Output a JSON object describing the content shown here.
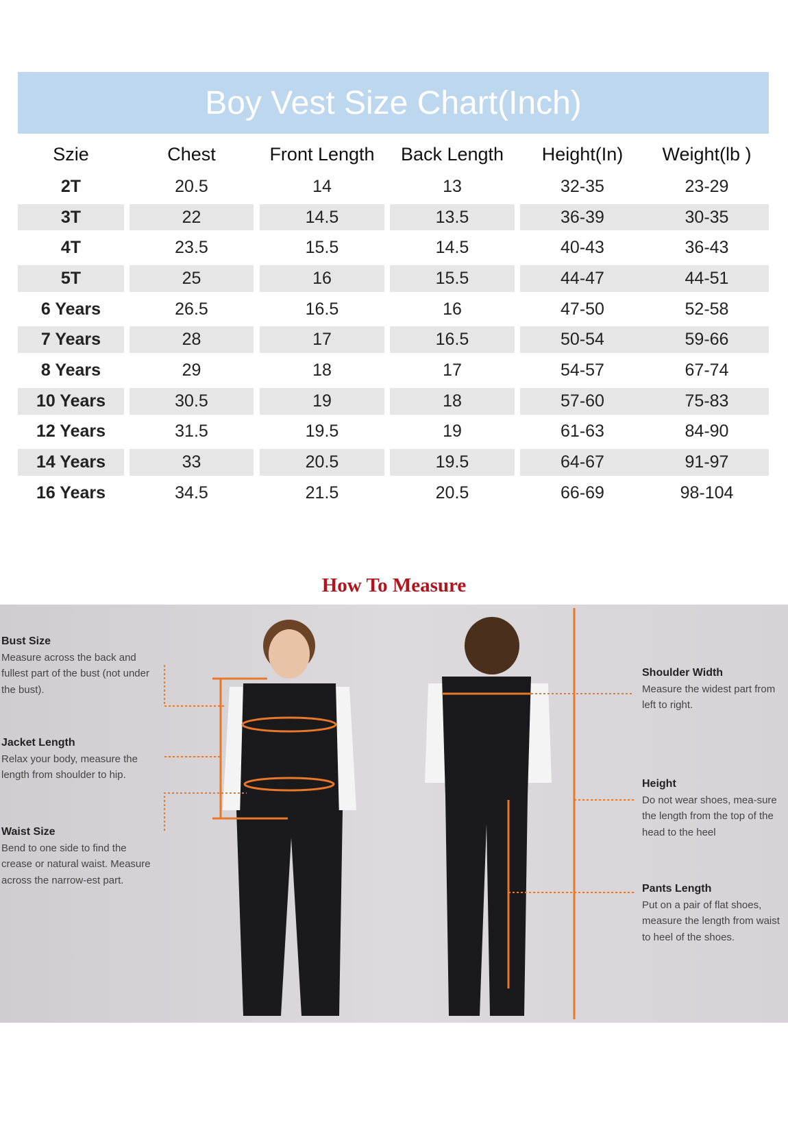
{
  "title": "Boy Vest Size Chart(Inch)",
  "headers": [
    "Szie",
    "Chest",
    "Front Length",
    "Back Length",
    "Height(In)",
    "Weight(lb )"
  ],
  "rows": [
    [
      "2T",
      "20.5",
      "14",
      "13",
      "32-35",
      "23-29"
    ],
    [
      "3T",
      "22",
      "14.5",
      "13.5",
      "36-39",
      "30-35"
    ],
    [
      "4T",
      "23.5",
      "15.5",
      "14.5",
      "40-43",
      "36-43"
    ],
    [
      "5T",
      "25",
      "16",
      "15.5",
      "44-47",
      "44-51"
    ],
    [
      "6 Years",
      "26.5",
      "16.5",
      "16",
      "47-50",
      "52-58"
    ],
    [
      "7 Years",
      "28",
      "17",
      "16.5",
      "50-54",
      "59-66"
    ],
    [
      "8 Years",
      "29",
      "18",
      "17",
      "54-57",
      "67-74"
    ],
    [
      "10 Years",
      "30.5",
      "19",
      "18",
      "57-60",
      "75-83"
    ],
    [
      "12 Years",
      "31.5",
      "19.5",
      "19",
      "61-63",
      "84-90"
    ],
    [
      "14 Years",
      "33",
      "20.5",
      "19.5",
      "64-67",
      "91-97"
    ],
    [
      "16 Years",
      "34.5",
      "21.5",
      "20.5",
      "66-69",
      "98-104"
    ]
  ],
  "measure": {
    "title": "How To Measure",
    "notes": [
      {
        "title": "Bust Size",
        "text": "Measure across the back and fullest part of the bust (not under the bust)."
      },
      {
        "title": "Jacket Length",
        "text": "Relax your body, measure the length from shoulder to hip."
      },
      {
        "title": "Waist Size",
        "text": "Bend to one side to find the crease or natural waist. Measure across the narrow-est part."
      },
      {
        "title": "Shoulder Width",
        "text": "Measure the widest part from left to right."
      },
      {
        "title": "Height",
        "text": "Do not wear shoes, mea-sure the length from the top of the head to the heel"
      },
      {
        "title": "Pants Length",
        "text": "Put on a pair of flat shoes, measure the length from waist to heel of the shoes."
      }
    ]
  },
  "colors": {
    "banner": "#bdd7ee",
    "stripe": "#e7e6e6",
    "measure_title": "#b0141c",
    "guide": "#e8782a"
  }
}
